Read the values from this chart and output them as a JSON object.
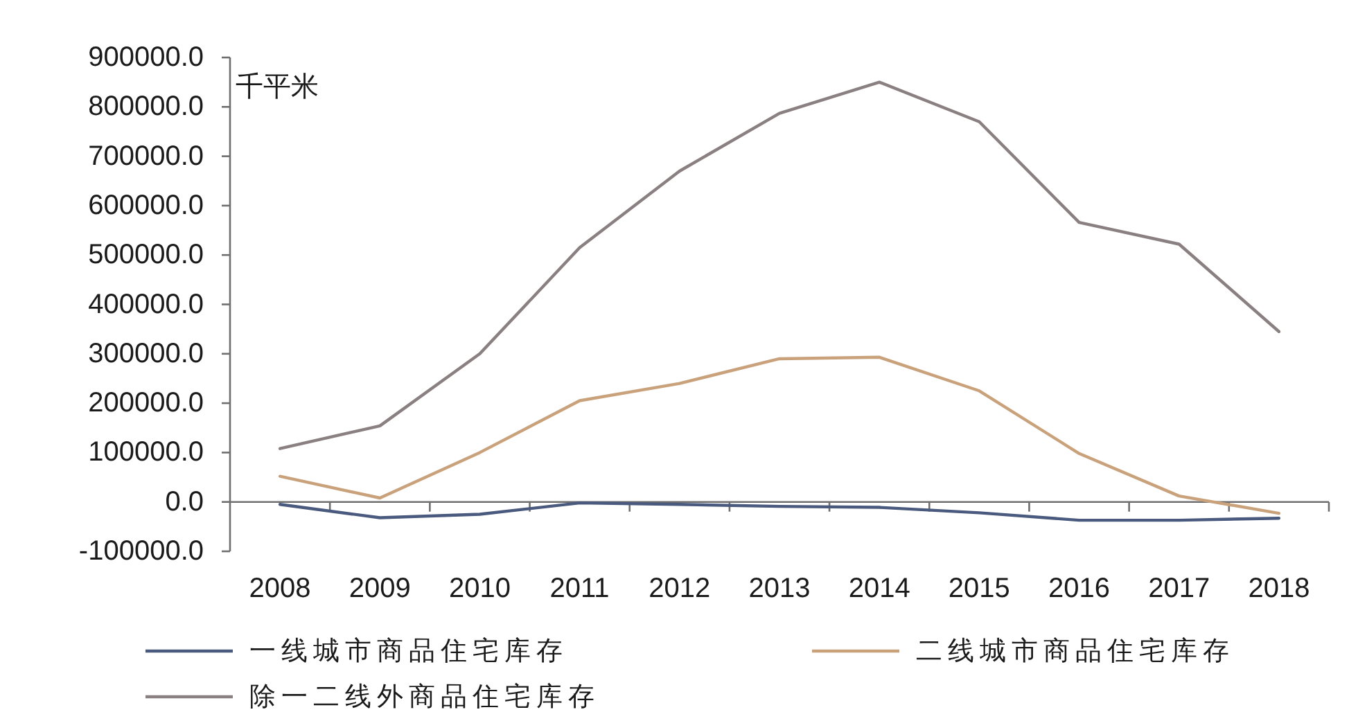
{
  "chart_data": {
    "type": "line",
    "ylabel": "千平米",
    "categories": [
      "2008",
      "2009",
      "2010",
      "2011",
      "2012",
      "2013",
      "2014",
      "2015",
      "2016",
      "2017",
      "2018"
    ],
    "series": [
      {
        "name": "一线城市商品住宅库存",
        "color": "#4a5a7e",
        "values": [
          -5000,
          -32000,
          -25000,
          -2000,
          -5000,
          -9000,
          -11000,
          -22000,
          -37000,
          -37000,
          -33000
        ]
      },
      {
        "name": "二线城市商品住宅库存",
        "color": "#c9a27c",
        "values": [
          52000,
          8000,
          100000,
          205000,
          240000,
          290000,
          293000,
          225000,
          98000,
          12000,
          -23000
        ]
      },
      {
        "name": "除一二线外商品住宅库存",
        "color": "#8a8081",
        "values": [
          108000,
          154000,
          300000,
          515000,
          670000,
          787000,
          850000,
          770000,
          566000,
          522000,
          345000
        ]
      }
    ],
    "ylim": [
      -100000,
      900000
    ],
    "yticks": [
      {
        "value": -100000,
        "label": "-100000.0"
      },
      {
        "value": 0,
        "label": "0.0"
      },
      {
        "value": 100000,
        "label": "100000.0"
      },
      {
        "value": 200000,
        "label": "200000.0"
      },
      {
        "value": 300000,
        "label": "300000.0"
      },
      {
        "value": 400000,
        "label": "400000.0"
      },
      {
        "value": 500000,
        "label": "500000.0"
      },
      {
        "value": 600000,
        "label": "600000.0"
      },
      {
        "value": 700000,
        "label": "700000.0"
      },
      {
        "value": 800000,
        "label": "800000.0"
      },
      {
        "value": 900000,
        "label": "900000.0"
      }
    ],
    "legend": "bottom"
  }
}
